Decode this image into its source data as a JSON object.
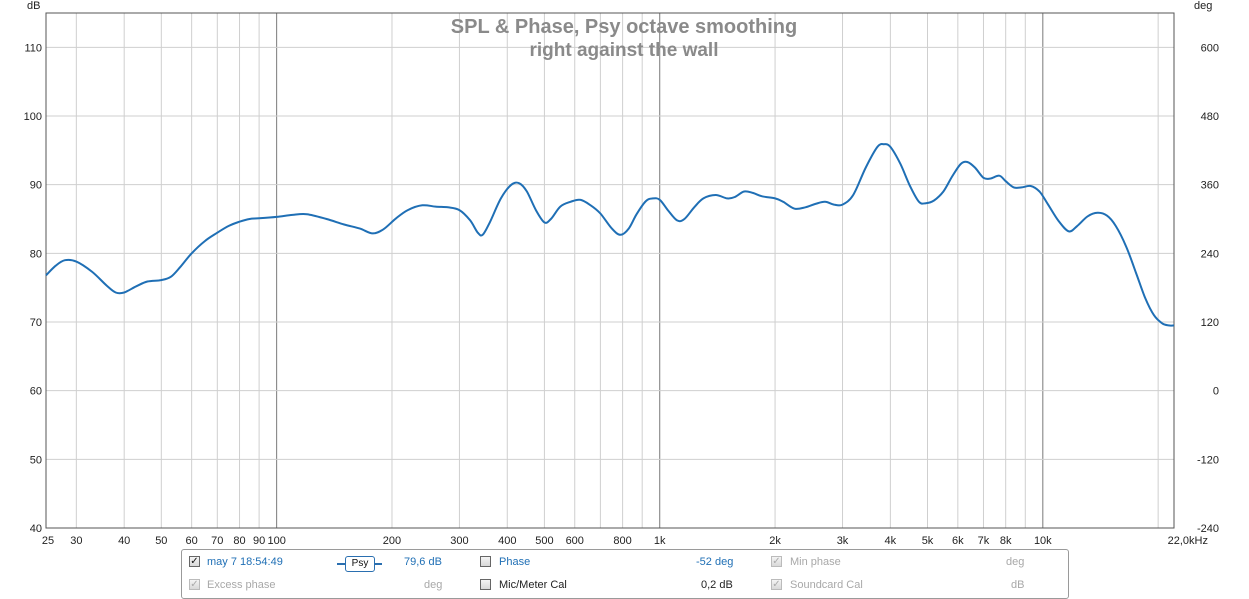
{
  "chart_data": {
    "type": "line",
    "title": "SPL & Phase, Psy octave smoothing",
    "subtitle": "right against the wall",
    "xlabel": "",
    "ylabel": "dB",
    "y2label": "deg",
    "x_scale": "log",
    "xlim": [
      25,
      22000
    ],
    "ylim": [
      40,
      115
    ],
    "y2lim": [
      -240,
      660
    ],
    "x_major_ticks": [
      100,
      1000,
      10000
    ],
    "x_ticks": [
      {
        "value": 25,
        "label": "25"
      },
      {
        "value": 30,
        "label": "30"
      },
      {
        "value": 40,
        "label": "40"
      },
      {
        "value": 50,
        "label": "50"
      },
      {
        "value": 60,
        "label": "60"
      },
      {
        "value": 70,
        "label": "70"
      },
      {
        "value": 80,
        "label": "80"
      },
      {
        "value": 90,
        "label": "90"
      },
      {
        "value": 100,
        "label": "100"
      },
      {
        "value": 200,
        "label": "200"
      },
      {
        "value": 300,
        "label": "300"
      },
      {
        "value": 400,
        "label": "400"
      },
      {
        "value": 500,
        "label": "500"
      },
      {
        "value": 600,
        "label": "600"
      },
      {
        "value": 800,
        "label": "800"
      },
      {
        "value": 1000,
        "label": "1k"
      },
      {
        "value": 2000,
        "label": "2k"
      },
      {
        "value": 3000,
        "label": "3k"
      },
      {
        "value": 4000,
        "label": "4k"
      },
      {
        "value": 5000,
        "label": "5k"
      },
      {
        "value": 6000,
        "label": "6k"
      },
      {
        "value": 7000,
        "label": "7k"
      },
      {
        "value": 8000,
        "label": "8k"
      },
      {
        "value": 10000,
        "label": "10k"
      },
      {
        "value": 22000,
        "label": "22,0kHz"
      }
    ],
    "x_grid": [
      25,
      30,
      40,
      50,
      60,
      70,
      80,
      90,
      100,
      200,
      300,
      400,
      500,
      600,
      700,
      800,
      900,
      1000,
      2000,
      3000,
      4000,
      5000,
      6000,
      7000,
      8000,
      9000,
      10000,
      20000
    ],
    "y_ticks": [
      40,
      50,
      60,
      70,
      80,
      90,
      100,
      110
    ],
    "y2_ticks": [
      -240,
      -120,
      0,
      120,
      240,
      360,
      480,
      600
    ],
    "grid": true,
    "legend": "bottom",
    "series": [
      {
        "name": "may 7 18:54:49",
        "color": "#1f6fb5",
        "points": [
          [
            25,
            76.8
          ],
          [
            26.5,
            78.2
          ],
          [
            28,
            79.0
          ],
          [
            30,
            78.8
          ],
          [
            33,
            77.3
          ],
          [
            36,
            75.3
          ],
          [
            38,
            74.3
          ],
          [
            40,
            74.3
          ],
          [
            43,
            75.2
          ],
          [
            46,
            75.9
          ],
          [
            50,
            76.1
          ],
          [
            53,
            76.6
          ],
          [
            56,
            78.0
          ],
          [
            60,
            80.0
          ],
          [
            65,
            81.8
          ],
          [
            70,
            83.0
          ],
          [
            75,
            84.0
          ],
          [
            80,
            84.6
          ],
          [
            85,
            85.0
          ],
          [
            90,
            85.1
          ],
          [
            100,
            85.3
          ],
          [
            110,
            85.6
          ],
          [
            120,
            85.7
          ],
          [
            135,
            85.0
          ],
          [
            150,
            84.2
          ],
          [
            165,
            83.6
          ],
          [
            178,
            82.9
          ],
          [
            190,
            83.5
          ],
          [
            205,
            85.1
          ],
          [
            220,
            86.3
          ],
          [
            240,
            87.0
          ],
          [
            260,
            86.8
          ],
          [
            280,
            86.7
          ],
          [
            300,
            86.3
          ],
          [
            320,
            84.8
          ],
          [
            335,
            83.0
          ],
          [
            345,
            82.7
          ],
          [
            360,
            84.5
          ],
          [
            385,
            88.0
          ],
          [
            410,
            90.0
          ],
          [
            430,
            90.2
          ],
          [
            450,
            89.0
          ],
          [
            475,
            86.3
          ],
          [
            500,
            84.5
          ],
          [
            520,
            85.0
          ],
          [
            550,
            86.8
          ],
          [
            585,
            87.5
          ],
          [
            620,
            87.8
          ],
          [
            660,
            87.0
          ],
          [
            700,
            85.8
          ],
          [
            750,
            83.6
          ],
          [
            790,
            82.7
          ],
          [
            830,
            83.6
          ],
          [
            870,
            85.7
          ],
          [
            920,
            87.6
          ],
          [
            960,
            88.0
          ],
          [
            1000,
            87.8
          ],
          [
            1050,
            86.3
          ],
          [
            1110,
            84.8
          ],
          [
            1160,
            85.0
          ],
          [
            1230,
            86.7
          ],
          [
            1300,
            88.0
          ],
          [
            1400,
            88.5
          ],
          [
            1500,
            88.0
          ],
          [
            1570,
            88.2
          ],
          [
            1660,
            89.0
          ],
          [
            1750,
            88.8
          ],
          [
            1850,
            88.3
          ],
          [
            2000,
            88.0
          ],
          [
            2100,
            87.5
          ],
          [
            2250,
            86.5
          ],
          [
            2400,
            86.7
          ],
          [
            2550,
            87.2
          ],
          [
            2700,
            87.5
          ],
          [
            2850,
            87.1
          ],
          [
            3000,
            87.1
          ],
          [
            3200,
            88.5
          ],
          [
            3450,
            92.5
          ],
          [
            3700,
            95.5
          ],
          [
            3850,
            95.9
          ],
          [
            4000,
            95.5
          ],
          [
            4250,
            93.0
          ],
          [
            4500,
            89.8
          ],
          [
            4750,
            87.5
          ],
          [
            4950,
            87.3
          ],
          [
            5200,
            87.7
          ],
          [
            5500,
            89.0
          ],
          [
            5800,
            91.2
          ],
          [
            6100,
            93.0
          ],
          [
            6350,
            93.3
          ],
          [
            6650,
            92.5
          ],
          [
            7000,
            91.0
          ],
          [
            7300,
            90.9
          ],
          [
            7700,
            91.3
          ],
          [
            8000,
            90.5
          ],
          [
            8400,
            89.6
          ],
          [
            8800,
            89.6
          ],
          [
            9300,
            89.8
          ],
          [
            9800,
            89.0
          ],
          [
            10300,
            87.2
          ],
          [
            11000,
            84.7
          ],
          [
            11700,
            83.2
          ],
          [
            12300,
            84.0
          ],
          [
            13100,
            85.4
          ],
          [
            13900,
            85.9
          ],
          [
            14700,
            85.5
          ],
          [
            15500,
            84.0
          ],
          [
            16500,
            81.0
          ],
          [
            17500,
            77.2
          ],
          [
            18500,
            73.5
          ],
          [
            19500,
            71.0
          ],
          [
            20500,
            69.8
          ],
          [
            21300,
            69.5
          ],
          [
            22000,
            69.5
          ]
        ]
      }
    ]
  },
  "legend_panel": {
    "measurement_label": "may 7 18:54:49",
    "smoothing_button": "Psy",
    "spl_value": "79,6 dB",
    "phase_label": "Phase",
    "phase_value": "-52 deg",
    "min_phase_label": "Min phase",
    "min_phase_unit": "deg",
    "excess_phase_label": "Excess phase",
    "excess_phase_unit": "deg",
    "mic_cal_label": "Mic/Meter Cal",
    "mic_cal_value": "0,2 dB",
    "soundcard_cal_label": "Soundcard Cal",
    "soundcard_cal_unit": "dB"
  }
}
